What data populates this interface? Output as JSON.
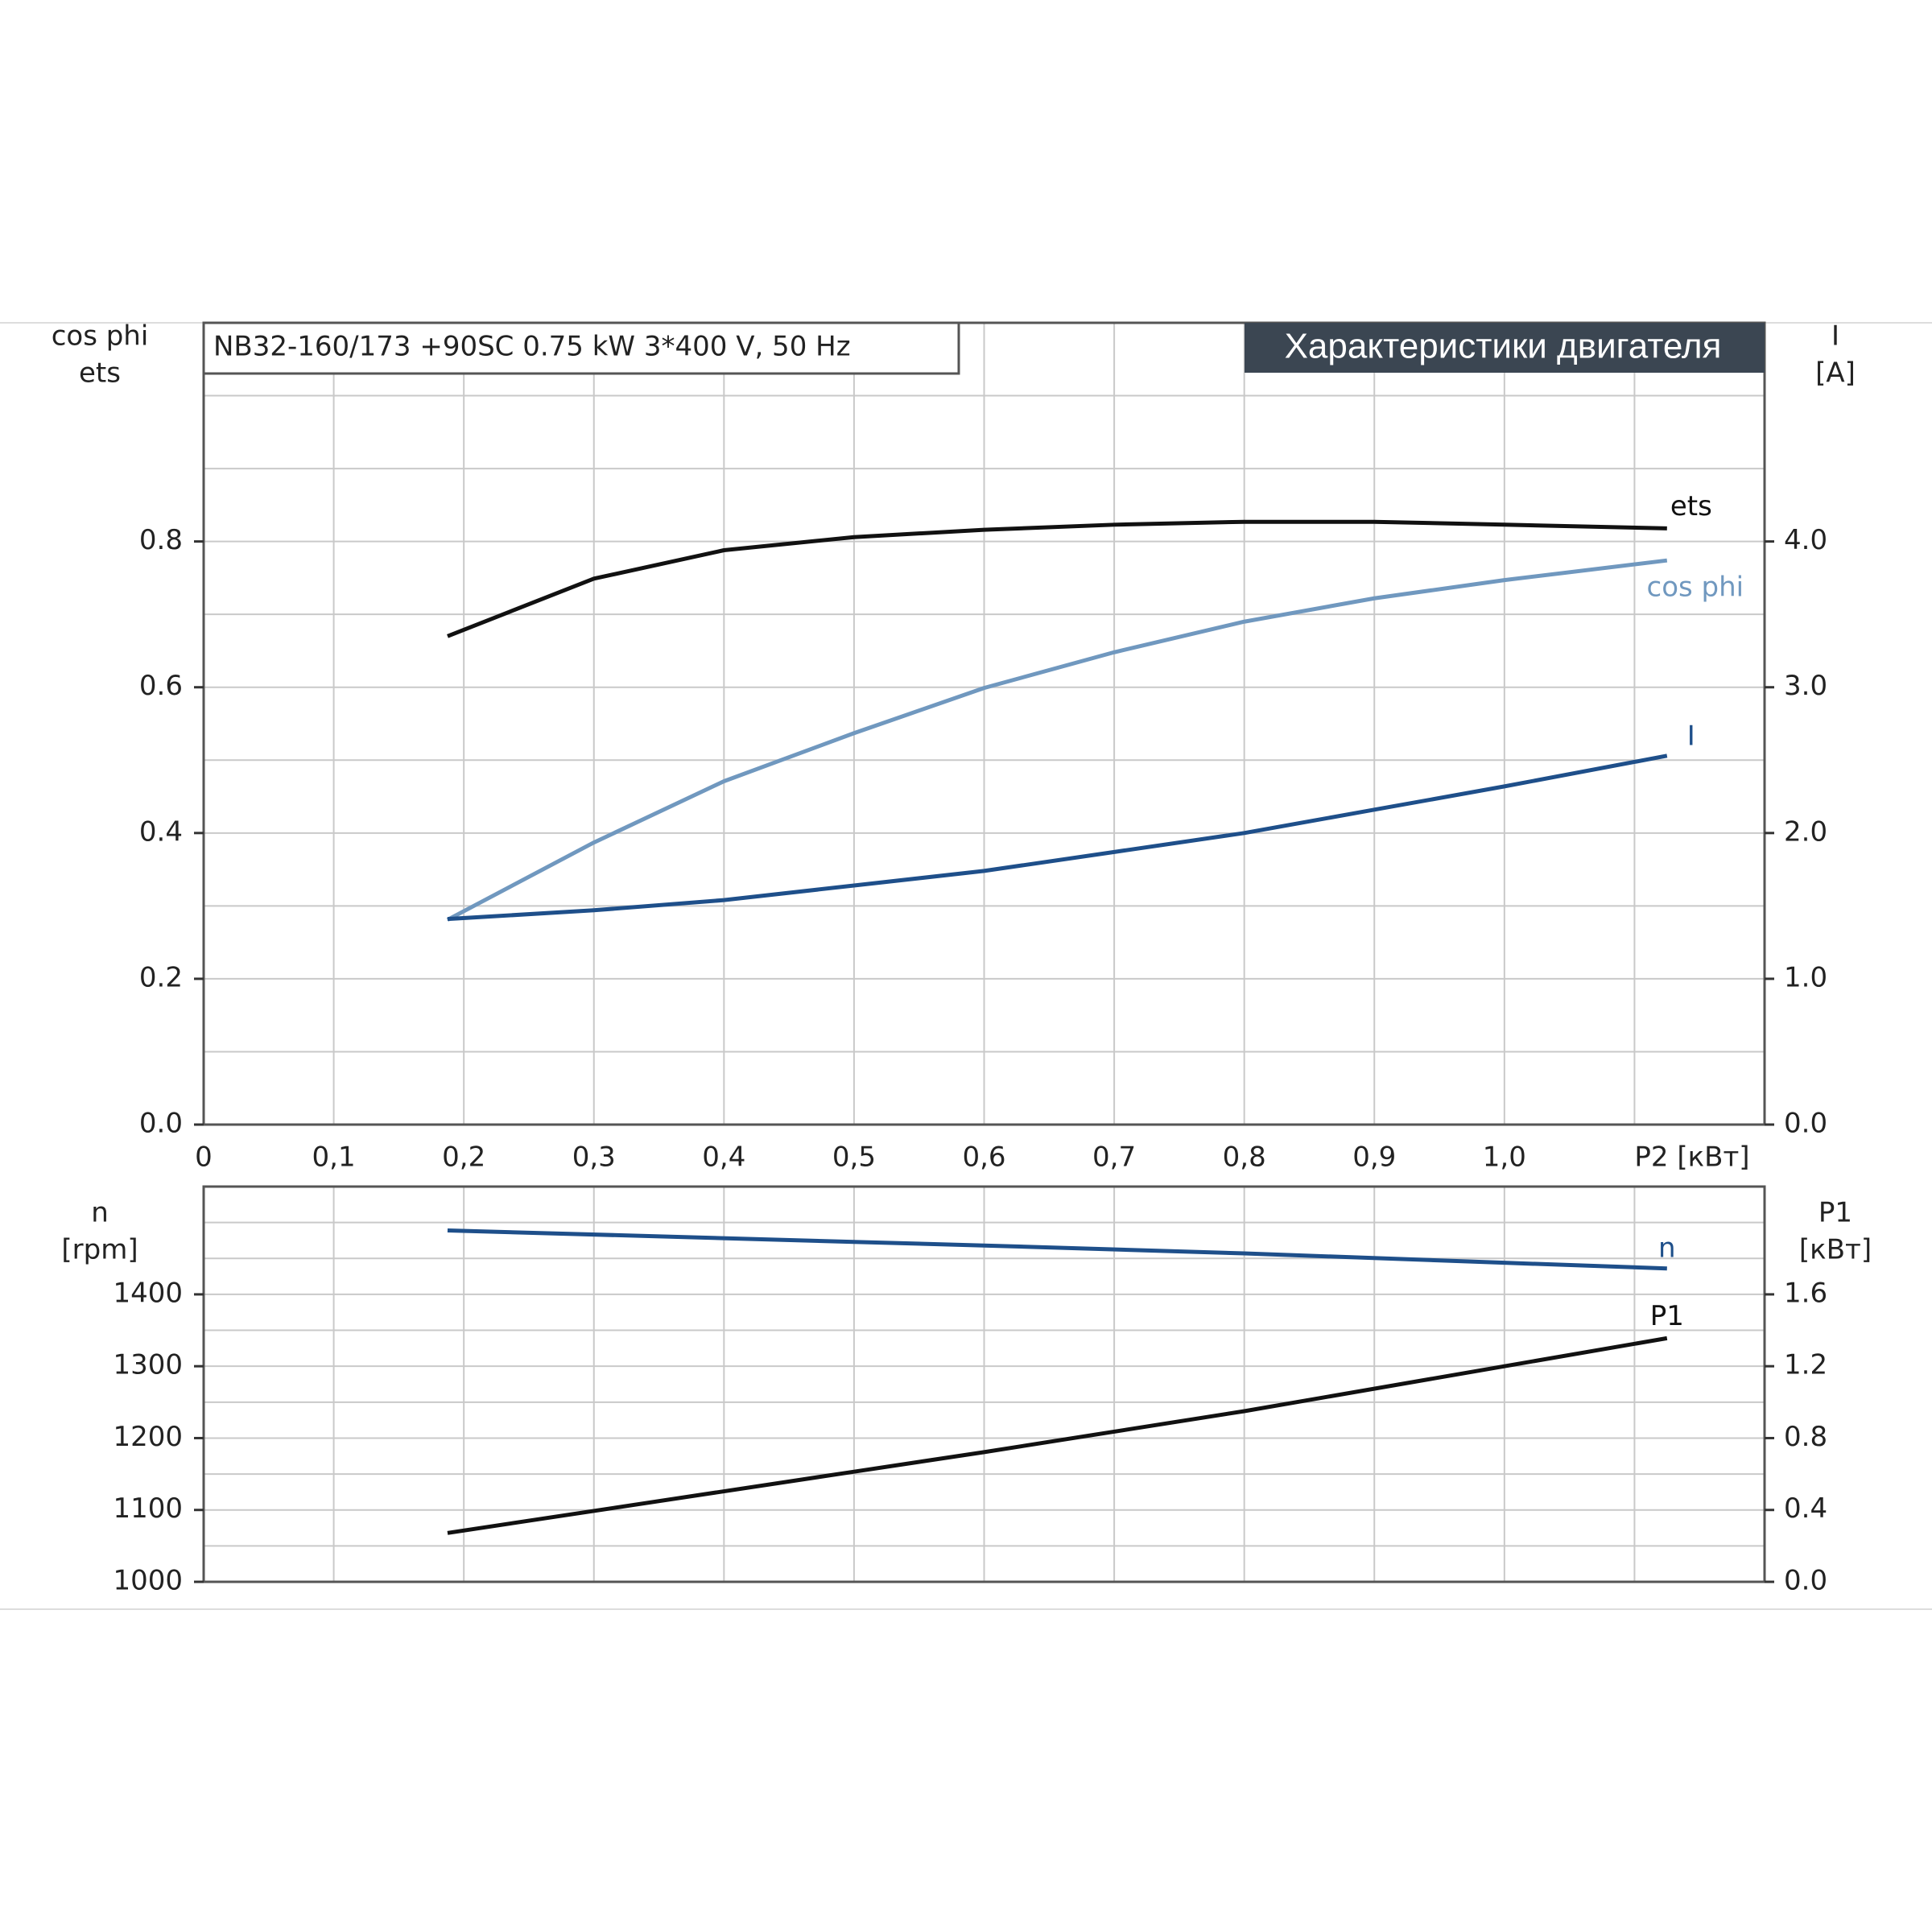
{
  "chart_data": [
    {
      "type": "line",
      "header": "NB32-160/173 +90SC  0.75 kW  3*400 V, 50 Hz",
      "title": "Характеристики двигателя",
      "xlabel": "P2 [кВт]",
      "ylabel": [
        "cos phi",
        "ets"
      ],
      "y2label": [
        "I",
        "[A]"
      ],
      "x": [
        0.1875,
        0.3,
        0.4,
        0.5,
        0.6,
        0.7,
        0.8,
        0.9,
        1.0,
        1.125
      ],
      "series": [
        {
          "name": "ets",
          "color": "#111111",
          "values": [
            0.67,
            0.749,
            0.788,
            0.806,
            0.816,
            0.823,
            0.827,
            0.827,
            0.823,
            0.818
          ]
        },
        {
          "name": "cos phi",
          "color": "#7098bf",
          "values": [
            0.281,
            0.387,
            0.471,
            0.537,
            0.599,
            0.648,
            0.69,
            0.722,
            0.747,
            0.774
          ]
        },
        {
          "name": "I",
          "color": "#1e4f8a",
          "axis": "y2",
          "values": [
            1.41,
            1.47,
            1.54,
            1.64,
            1.74,
            1.87,
            2.0,
            2.16,
            2.32,
            2.53
          ]
        }
      ],
      "xlim": [
        0,
        1.2
      ],
      "xticks": [
        0,
        {
          "value": 0.1,
          "label": "0,1"
        },
        {
          "value": 0.2,
          "label": "0,2"
        },
        {
          "value": 0.3,
          "label": "0,3"
        },
        {
          "value": 0.4,
          "label": "0,4"
        },
        {
          "value": 0.5,
          "label": "0,5"
        },
        {
          "value": 0.6,
          "label": "0,6"
        },
        {
          "value": 0.7,
          "label": "0,7"
        },
        {
          "value": 0.8,
          "label": "0,8"
        },
        {
          "value": 0.9,
          "label": "0,9"
        },
        {
          "value": 1.0,
          "label": "1,0"
        }
      ],
      "minor_xticks": [
        1.1
      ],
      "ylim": [
        0,
        1.1
      ],
      "yticks": [
        {
          "value": 0,
          "label": "0.0"
        },
        0.2,
        0.4,
        0.6,
        0.8
      ],
      "minor_yticks": [
        0.1,
        0.3,
        0.5,
        0.7,
        0.9,
        1.0
      ],
      "y2lim": [
        0,
        5.5
      ],
      "y2ticks": [
        {
          "value": 0,
          "label": "0.0"
        },
        {
          "value": 1,
          "label": "1.0"
        },
        {
          "value": 2,
          "label": "2.0"
        },
        {
          "value": 3,
          "label": "3.0"
        },
        {
          "value": 4,
          "label": "4.0"
        }
      ],
      "grid": true
    },
    {
      "type": "line",
      "ylabel": [
        "n",
        "[rpm]"
      ],
      "y2label": [
        "P1",
        "[кВт]"
      ],
      "x": [
        0.1875,
        0.5,
        0.6,
        0.8,
        1.0,
        1.125
      ],
      "series": [
        {
          "name": "n",
          "color": "#1e4f8a",
          "values": [
            1489,
            1473,
            1468,
            1457,
            1444,
            1436
          ]
        },
        {
          "name": "P1",
          "color": "#111111",
          "axis": "y2",
          "values": [
            0.272,
            0.613,
            0.722,
            0.95,
            1.2,
            1.356
          ]
        }
      ],
      "xlim": [
        0,
        1.2
      ],
      "minor_xticks": [
        0.1,
        0.2,
        0.3,
        0.4,
        0.5,
        0.6,
        0.7,
        0.8,
        0.9,
        1.0,
        1.1
      ],
      "ylim": [
        1000,
        1550
      ],
      "yticks": [
        1000,
        1100,
        1200,
        1300,
        1400
      ],
      "minor_yticks": [
        1050,
        1150,
        1250,
        1350,
        1450,
        1500
      ],
      "y2lim": [
        0,
        2.2
      ],
      "y2ticks": [
        {
          "value": 0,
          "label": "0.0"
        },
        {
          "value": 0.4,
          "label": "0.4"
        },
        {
          "value": 0.8,
          "label": "0.8"
        },
        {
          "value": 1.2,
          "label": "1.2"
        },
        {
          "value": 1.6,
          "label": "1.6"
        }
      ],
      "grid": true
    }
  ]
}
